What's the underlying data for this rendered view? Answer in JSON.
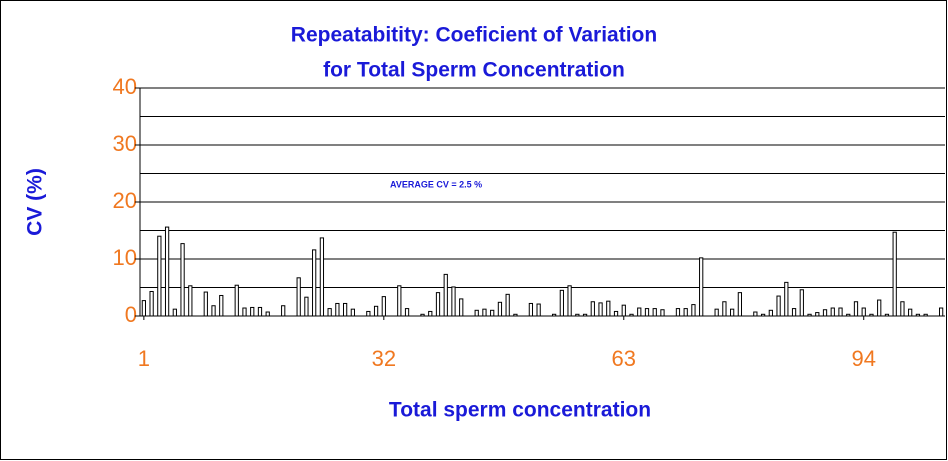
{
  "chart_data": {
    "type": "bar",
    "title": [
      "Repeatabitity: Coeficient of Variation",
      "for Total Sperm Concentration"
    ],
    "y_label": "CV (%)",
    "x_label": "Total sperm concentration",
    "annotation": "AVERAGE CV = 2.5 %",
    "x": [
      1,
      2,
      3,
      4,
      5,
      6,
      7,
      8,
      9,
      10,
      11,
      12,
      13,
      14,
      15,
      16,
      17,
      18,
      19,
      20,
      21,
      22,
      23,
      24,
      25,
      26,
      27,
      28,
      29,
      30,
      31,
      32,
      33,
      34,
      35,
      36,
      37,
      38,
      39,
      40,
      41,
      42,
      43,
      44,
      45,
      46,
      47,
      48,
      49,
      50,
      51,
      52,
      53,
      54,
      55,
      56,
      57,
      58,
      59,
      60,
      61,
      62,
      63,
      64,
      65,
      66,
      67,
      68,
      69,
      70,
      71,
      72,
      73,
      74,
      75,
      76,
      77,
      78,
      79,
      80,
      81,
      82,
      83,
      84,
      85,
      86,
      87,
      88,
      89,
      90,
      91,
      92,
      93,
      94,
      95,
      96,
      97,
      98,
      99,
      100,
      101,
      102,
      103,
      104
    ],
    "values": [
      2.7,
      4.3,
      14,
      15.6,
      1.2,
      12.7,
      5.3,
      0,
      4.2,
      1.8,
      3.6,
      0,
      5.4,
      1.4,
      1.5,
      1.5,
      0.7,
      0,
      1.8,
      0,
      6.7,
      3.3,
      11.6,
      13.7,
      1.3,
      2.2,
      2.2,
      1.2,
      0,
      0.8,
      1.7,
      3.4,
      0,
      5.3,
      1.3,
      0,
      0.3,
      0.8,
      4.1,
      7.3,
      5.1,
      3,
      0,
      1,
      1.2,
      1,
      2.4,
      3.8,
      0.3,
      0,
      2.2,
      2.1,
      0,
      0.3,
      4.5,
      5.3,
      0.3,
      0.3,
      2.5,
      2.3,
      2.6,
      0.8,
      1.9,
      0.3,
      1.4,
      1.3,
      1.3,
      1.1,
      0,
      1.3,
      1.3,
      2,
      10.2,
      0,
      1.2,
      2.5,
      1.2,
      4.1,
      0,
      0.7,
      0.3,
      1,
      3.5,
      5.9,
      1.3,
      4.6,
      0.3,
      0.6,
      1.1,
      1.4,
      1.4,
      0.3,
      2.5,
      1.4,
      0.3,
      2.8,
      0.3,
      14.7,
      2.5,
      1.2,
      0.3,
      0.3,
      0,
      1.4
    ],
    "color": "#ffffff",
    "xlim": [
      0.5,
      104.5
    ],
    "xticks": [
      1,
      32,
      63,
      94
    ],
    "ylim": [
      0,
      40
    ],
    "yticks": [
      0,
      10,
      20,
      30,
      40
    ],
    "ygrid": [
      0,
      5,
      10,
      15,
      20,
      25,
      30,
      35,
      40
    ]
  }
}
